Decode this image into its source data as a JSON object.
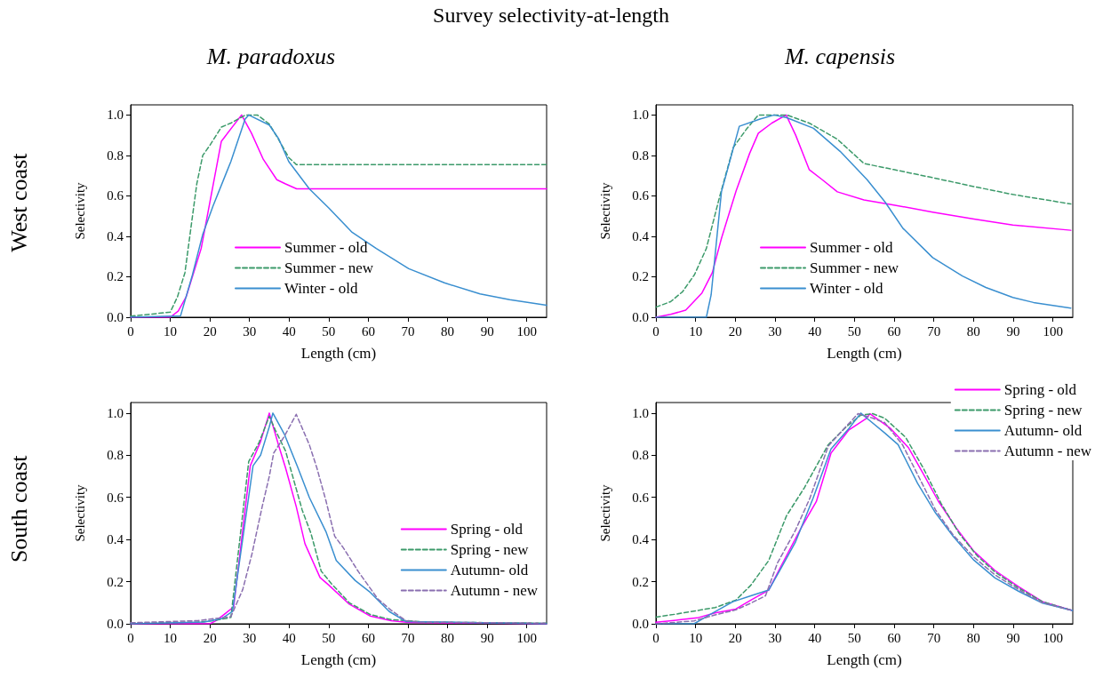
{
  "chart_data": [
    {
      "type": "line",
      "title": "M. paradoxus",
      "subtitle": "West coast",
      "annotations": [
        "Survey selectivity-at-length"
      ],
      "xlabel": "Length (cm)",
      "ylabel": "Selectivity",
      "xlim": [
        0,
        105
      ],
      "ylim": [
        0,
        1.05
      ],
      "xticks": [
        0,
        10,
        20,
        30,
        40,
        50,
        60,
        70,
        80,
        90,
        100
      ],
      "yticks": [
        {
          "value": 0,
          "label": "0.0"
        },
        {
          "value": 0.2,
          "label": "0.2"
        },
        {
          "value": 0.4,
          "label": "0.4"
        },
        {
          "value": 0.6,
          "label": "0.6"
        },
        {
          "value": 0.8,
          "label": "0.8"
        },
        {
          "value": 1,
          "label": "1.0"
        }
      ],
      "legend": "bottom",
      "marker": "none",
      "series": [
        {
          "name": "Summer - old",
          "color": "#ff00ff",
          "line_style": "solid",
          "x": [
            0,
            10,
            12,
            14,
            17.8,
            22.9,
            28,
            30.5,
            33.5,
            36.9,
            39,
            41.9,
            105
          ],
          "values": [
            0,
            0,
            0.03,
            0.1,
            0.34,
            0.87,
            1.0,
            0.91,
            0.78,
            0.68,
            0.66,
            0.635,
            0.635
          ]
        },
        {
          "name": "Summer - new",
          "color": "#3c9a6a",
          "line_style": "dashed",
          "x": [
            0,
            10,
            11.8,
            13.7,
            16.7,
            18.2,
            20,
            22.9,
            25.3,
            29,
            32,
            35,
            37.3,
            39.9,
            41.8,
            105
          ],
          "values": [
            0.005,
            0.025,
            0.1,
            0.22,
            0.66,
            0.8,
            0.85,
            0.94,
            0.96,
            1.0,
            1.0,
            0.955,
            0.88,
            0.79,
            0.755,
            0.755
          ]
        },
        {
          "name": "Winter - old",
          "color": "#3a8fd0",
          "line_style": "solid",
          "x": [
            0,
            12.6,
            15.6,
            18.2,
            20.8,
            25.3,
            28.9,
            29.8,
            35,
            37.3,
            39.9,
            45.1,
            50,
            55.9,
            62,
            70.2,
            79.2,
            88.2,
            95.7,
            105
          ],
          "values": [
            0,
            0.007,
            0.21,
            0.41,
            0.55,
            0.77,
            0.98,
            1.0,
            0.95,
            0.885,
            0.77,
            0.635,
            0.54,
            0.42,
            0.34,
            0.24,
            0.17,
            0.115,
            0.087,
            0.059
          ]
        }
      ]
    },
    {
      "type": "line",
      "title": "M. capensis",
      "xlabel": "Length (cm)",
      "ylabel": "Selectivity",
      "xlim": [
        0,
        105
      ],
      "ylim": [
        0,
        1.05
      ],
      "xticks": [
        0,
        10,
        20,
        30,
        40,
        50,
        60,
        70,
        80,
        90,
        100
      ],
      "yticks": [
        {
          "value": 0,
          "label": "0.0"
        },
        {
          "value": 0.2,
          "label": "0.2"
        },
        {
          "value": 0.4,
          "label": "0.4"
        },
        {
          "value": 0.6,
          "label": "0.6"
        },
        {
          "value": 0.8,
          "label": "0.8"
        },
        {
          "value": 1,
          "label": "1.0"
        }
      ],
      "legend": "bottom",
      "marker": "none",
      "series": [
        {
          "name": "Summer - old",
          "color": "#ff00ff",
          "line_style": "solid",
          "x": [
            0,
            3.7,
            7.5,
            11.6,
            14.2,
            16.5,
            20.2,
            23.6,
            25.8,
            29.2,
            32.8,
            35.2,
            38.6,
            41.9,
            45.7,
            52.4,
            59.9,
            69.7,
            80.1,
            89.9,
            104.5
          ],
          "values": [
            0,
            0.014,
            0.035,
            0.12,
            0.22,
            0.39,
            0.625,
            0.81,
            0.91,
            0.96,
            1.0,
            0.9,
            0.73,
            0.68,
            0.62,
            0.58,
            0.555,
            0.52,
            0.485,
            0.456,
            0.43
          ]
        },
        {
          "name": "Summer - new",
          "color": "#3c9a6a",
          "line_style": "dashed",
          "x": [
            0,
            3.7,
            6.7,
            9.7,
            12.7,
            16.1,
            19.5,
            22.8,
            25.8,
            33,
            38.6,
            45.7,
            52.4,
            59.9,
            69.7,
            80.1,
            89.9,
            104.5
          ],
          "values": [
            0.05,
            0.077,
            0.126,
            0.21,
            0.34,
            0.6,
            0.84,
            0.93,
            1.0,
            1.0,
            0.96,
            0.88,
            0.76,
            0.73,
            0.69,
            0.646,
            0.607,
            0.56
          ]
        },
        {
          "name": "Winter - old",
          "color": "#3a8fd0",
          "line_style": "solid",
          "x": [
            0,
            12.7,
            13.9,
            16.5,
            21,
            26.2,
            29.8,
            33,
            39.7,
            46.4,
            53.2,
            57.7,
            62.2,
            69.7,
            77.2,
            83.1,
            89.9,
            95.1,
            104.5
          ],
          "values": [
            0,
            0,
            0.11,
            0.62,
            0.944,
            0.98,
            1.0,
            0.986,
            0.934,
            0.82,
            0.68,
            0.57,
            0.44,
            0.295,
            0.204,
            0.147,
            0.098,
            0.073,
            0.045
          ]
        }
      ]
    },
    {
      "type": "line",
      "subtitle": "South coast",
      "xlabel": "Length (cm)",
      "ylabel": "Selectivity",
      "xlim": [
        0,
        105
      ],
      "ylim": [
        0,
        1.05
      ],
      "xticks": [
        0,
        10,
        20,
        30,
        40,
        50,
        60,
        70,
        80,
        90,
        100
      ],
      "yticks": [
        {
          "value": 0,
          "label": "0.0"
        },
        {
          "value": 0.2,
          "label": "0.2"
        },
        {
          "value": 0.4,
          "label": "0.4"
        },
        {
          "value": 0.6,
          "label": "0.6"
        },
        {
          "value": 0.8,
          "label": "0.8"
        },
        {
          "value": 1,
          "label": "1.0"
        }
      ],
      "legend": "bottom right",
      "marker": "none",
      "series": [
        {
          "name": "Spring - old",
          "color": "#ff00ff",
          "line_style": "solid",
          "x": [
            0,
            20,
            21.6,
            26,
            30.2,
            32.8,
            35,
            37.3,
            39.1,
            41.8,
            44,
            47.8,
            50,
            55.2,
            60.5,
            65.7,
            70.2,
            105
          ],
          "values": [
            0,
            0,
            0.015,
            0.08,
            0.75,
            0.865,
            1.0,
            0.85,
            0.74,
            0.556,
            0.38,
            0.22,
            0.184,
            0.093,
            0.037,
            0.015,
            0.006,
            0
          ]
        },
        {
          "name": "Spring - new",
          "color": "#3c9a6a",
          "line_style": "dashed",
          "x": [
            0,
            17,
            21,
            25.3,
            29.8,
            32.4,
            35,
            36.5,
            39.1,
            43.3,
            45.5,
            48.1,
            50.7,
            55.2,
            60.5,
            65.7,
            74.7,
            105
          ],
          "values": [
            0.003,
            0.008,
            0.015,
            0.03,
            0.77,
            0.86,
            0.985,
            0.92,
            0.82,
            0.54,
            0.43,
            0.25,
            0.19,
            0.1,
            0.044,
            0.02,
            0.008,
            0.003
          ]
        },
        {
          "name": "Autumn- old",
          "color": "#3a8fd0",
          "line_style": "solid",
          "x": [
            0,
            18.6,
            23,
            25.7,
            30.9,
            32.8,
            35,
            35.9,
            38.8,
            42.1,
            45.1,
            49.3,
            51.9,
            56.7,
            60.5,
            65.3,
            69.5,
            105
          ],
          "values": [
            0,
            0.008,
            0.025,
            0.058,
            0.75,
            0.8,
            0.935,
            1.0,
            0.9,
            0.746,
            0.6,
            0.437,
            0.3,
            0.205,
            0.149,
            0.058,
            0.011,
            0
          ]
        },
        {
          "name": "Autumn - new",
          "color": "#8a6fb0",
          "line_style": "dashed",
          "x": [
            0,
            17,
            25.3,
            28.3,
            30.6,
            33.2,
            35,
            36.1,
            38.8,
            41.8,
            45.1,
            47,
            49.3,
            51.5,
            53.7,
            57.5,
            62.4,
            65.7,
            69.5,
            73.2,
            105
          ],
          "values": [
            0.005,
            0.015,
            0.034,
            0.163,
            0.33,
            0.556,
            0.7,
            0.81,
            0.89,
            0.994,
            0.85,
            0.74,
            0.584,
            0.416,
            0.36,
            0.247,
            0.118,
            0.065,
            0.015,
            0.008,
            0.003
          ]
        }
      ]
    },
    {
      "type": "line",
      "xlabel": "Length (cm)",
      "ylabel": "Selectivity",
      "xlim": [
        0,
        105
      ],
      "ylim": [
        0,
        1.05
      ],
      "xticks": [
        0,
        10,
        20,
        30,
        40,
        50,
        60,
        70,
        80,
        90,
        100
      ],
      "yticks": [
        {
          "value": 0,
          "label": "0.0"
        },
        {
          "value": 0.2,
          "label": "0.2"
        },
        {
          "value": 0.4,
          "label": "0.4"
        },
        {
          "value": 0.6,
          "label": "0.6"
        },
        {
          "value": 0.8,
          "label": "0.8"
        },
        {
          "value": 1,
          "label": "1.0"
        }
      ],
      "legend": "top right",
      "marker": "none",
      "series": [
        {
          "name": "Spring - old",
          "color": "#ff00ff",
          "line_style": "solid",
          "x": [
            0,
            5.1,
            10.4,
            14.9,
            20.1,
            23.9,
            28.4,
            31.4,
            36.6,
            40.4,
            44.1,
            48.6,
            53.1,
            53.9,
            59.1,
            63.6,
            67.4,
            71.1,
            75.6,
            80.1,
            85.4,
            91.4,
            97.4,
            104.9
          ],
          "values": [
            0.007,
            0.017,
            0.028,
            0.052,
            0.07,
            0.112,
            0.16,
            0.27,
            0.456,
            0.58,
            0.81,
            0.92,
            0.976,
            0.997,
            0.927,
            0.836,
            0.71,
            0.583,
            0.456,
            0.344,
            0.253,
            0.176,
            0.105,
            0.063
          ]
        },
        {
          "name": "Spring - new",
          "color": "#3c9a6a",
          "line_style": "dashed",
          "x": [
            0,
            5.1,
            10.4,
            14.9,
            20.1,
            23.9,
            28.4,
            32.9,
            37.4,
            43.4,
            47.9,
            51.6,
            54.6,
            57.6,
            62.9,
            67.4,
            71.9,
            76.4,
            80.9,
            85.4,
            91.4,
            97.4,
            104.9
          ],
          "values": [
            0.032,
            0.046,
            0.063,
            0.077,
            0.112,
            0.183,
            0.3,
            0.513,
            0.646,
            0.85,
            0.934,
            0.99,
            0.997,
            0.976,
            0.885,
            0.737,
            0.569,
            0.428,
            0.323,
            0.246,
            0.169,
            0.105,
            0.063
          ]
        },
        {
          "name": "Autumn- old",
          "color": "#3a8fd0",
          "line_style": "solid",
          "x": [
            0,
            9.6,
            13.4,
            19.4,
            23.9,
            28.4,
            31.4,
            35.1,
            39.6,
            44.1,
            48.6,
            51.6,
            53.1,
            57.6,
            61,
            65.9,
            70.4,
            74.9,
            80.1,
            85.4,
            91.4,
            97.4,
            104.9
          ],
          "values": [
            0,
            0,
            0.042,
            0.105,
            0.133,
            0.16,
            0.26,
            0.386,
            0.597,
            0.83,
            0.927,
            1.0,
            0.976,
            0.906,
            0.85,
            0.667,
            0.527,
            0.414,
            0.302,
            0.218,
            0.154,
            0.098,
            0.063
          ]
        },
        {
          "name": "Autumn - new",
          "color": "#8a6fb0",
          "line_style": "dashed",
          "x": [
            0,
            9.6,
            14.9,
            20.1,
            23.9,
            27.6,
            30.6,
            35.1,
            38.8,
            43.4,
            47.1,
            50.9,
            54.6,
            57.6,
            62.1,
            65.9,
            70.4,
            74.9,
            80.1,
            85.4,
            91.4,
            97.4,
            104.9
          ],
          "values": [
            0,
            0.014,
            0.042,
            0.066,
            0.098,
            0.133,
            0.288,
            0.442,
            0.597,
            0.843,
            0.92,
            0.997,
            0.976,
            0.955,
            0.85,
            0.709,
            0.541,
            0.421,
            0.316,
            0.232,
            0.162,
            0.1,
            0.063
          ]
        }
      ]
    }
  ]
}
